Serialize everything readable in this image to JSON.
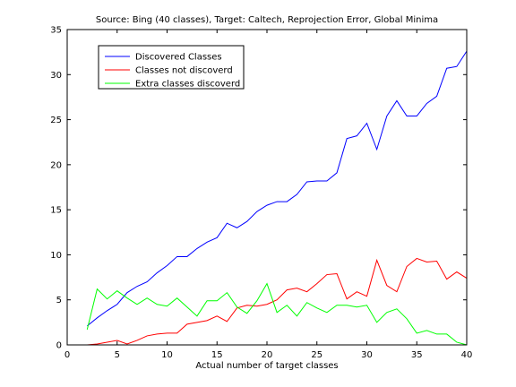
{
  "chart_data": {
    "type": "line",
    "title": "Source: Bing (40 classes), Target: Caltech, Reprojection Error, Global Minima",
    "xlabel": "Actual number of target classes",
    "ylabel": "",
    "xlim": [
      0,
      40
    ],
    "ylim": [
      0,
      35
    ],
    "xticks": [
      0,
      5,
      10,
      15,
      20,
      25,
      30,
      35,
      40
    ],
    "yticks": [
      0,
      5,
      10,
      15,
      20,
      25,
      30,
      35
    ],
    "grid": false,
    "legend_position": "top-left",
    "x": [
      2,
      3,
      4,
      5,
      6,
      7,
      8,
      9,
      10,
      11,
      12,
      13,
      14,
      15,
      16,
      17,
      18,
      19,
      20,
      21,
      22,
      23,
      24,
      25,
      26,
      27,
      28,
      29,
      30,
      31,
      32,
      33,
      34,
      35,
      36,
      37,
      38,
      39,
      40
    ],
    "series": [
      {
        "name": "Discovered Classes",
        "color": "#0000ff",
        "values": [
          2.1,
          3.0,
          3.8,
          4.5,
          5.8,
          6.5,
          7.0,
          8.0,
          8.8,
          9.8,
          9.8,
          10.7,
          11.4,
          11.9,
          13.5,
          13.0,
          13.7,
          14.8,
          15.5,
          15.9,
          15.9,
          16.7,
          18.1,
          18.2,
          18.2,
          19.1,
          22.9,
          23.2,
          24.6,
          21.7,
          25.4,
          27.1,
          25.4,
          25.4,
          26.8,
          27.6,
          30.7,
          30.9,
          32.6
        ]
      },
      {
        "name": "Classes not discoverd",
        "color": "#ff0000",
        "values": [
          0.0,
          0.1,
          0.3,
          0.5,
          0.1,
          0.5,
          1.0,
          1.2,
          1.3,
          1.3,
          2.3,
          2.5,
          2.7,
          3.2,
          2.6,
          4.1,
          4.4,
          4.3,
          4.5,
          5.0,
          6.1,
          6.3,
          5.9,
          6.8,
          7.8,
          7.9,
          5.1,
          5.9,
          5.4,
          9.4,
          6.6,
          5.9,
          8.7,
          9.6,
          9.2,
          9.3,
          7.3,
          8.1,
          7.4
        ]
      },
      {
        "name": "Extra classes discoverd",
        "color": "#00ff00",
        "values": [
          1.7,
          6.2,
          5.1,
          6.0,
          5.2,
          4.5,
          5.2,
          4.5,
          4.3,
          5.2,
          4.2,
          3.2,
          4.9,
          4.9,
          5.8,
          4.2,
          3.5,
          4.9,
          6.8,
          3.6,
          4.4,
          3.2,
          4.7,
          4.1,
          3.6,
          4.4,
          4.4,
          4.2,
          4.4,
          2.5,
          3.6,
          4.0,
          2.9,
          1.3,
          1.6,
          1.2,
          1.2,
          0.3,
          0.0
        ]
      }
    ]
  }
}
